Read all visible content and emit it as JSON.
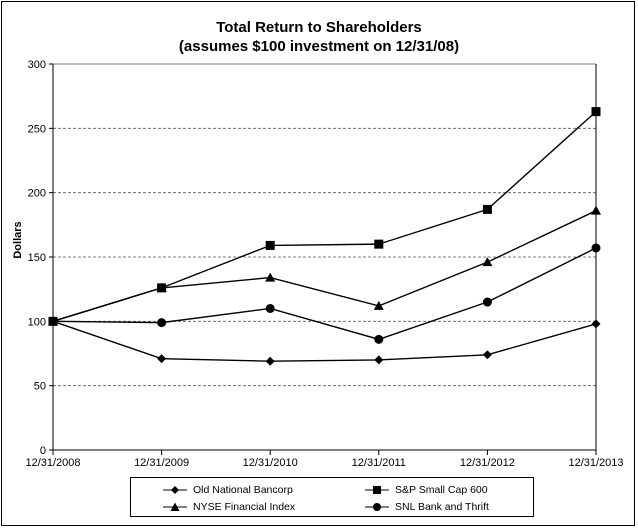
{
  "chart_data": {
    "type": "line",
    "title": "Total Return to Shareholders",
    "subtitle": "(assumes $100 investment on 12/31/08)",
    "ylabel": "Dollars",
    "xlabel": "",
    "x": [
      "12/31/2008",
      "12/31/2009",
      "12/31/2010",
      "12/31/2011",
      "12/31/2012",
      "12/31/2013"
    ],
    "yticks": [
      "0",
      "50",
      "100",
      "150",
      "200",
      "250",
      "300"
    ],
    "ylim": [
      0,
      300
    ],
    "grid": "horizontal dashed",
    "legend_position": "bottom",
    "series": [
      {
        "name": "Old National Bancorp",
        "marker": "diamond",
        "values": [
          100,
          71,
          69,
          70,
          74,
          98
        ]
      },
      {
        "name": "S&P Small Cap 600",
        "marker": "square",
        "values": [
          100,
          126,
          159,
          160,
          187,
          263
        ]
      },
      {
        "name": "NYSE Financial Index",
        "marker": "triangle",
        "values": [
          100,
          126,
          134,
          112,
          146,
          186
        ]
      },
      {
        "name": "SNL Bank and Thrift",
        "marker": "circle",
        "values": [
          100,
          99,
          110,
          86,
          115,
          157
        ]
      }
    ],
    "line_color": "#000000",
    "grid_color": "#555555"
  }
}
